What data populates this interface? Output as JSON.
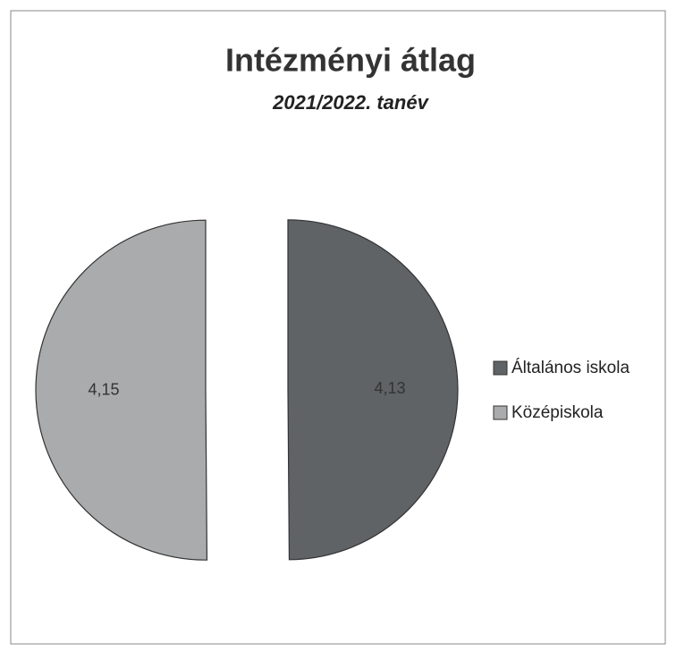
{
  "chart_data": {
    "type": "pie",
    "title": "Intézményi átlag",
    "subtitle": "2021/2022. tanév",
    "categories": [
      "Általános iskola",
      "Középiskola"
    ],
    "values": [
      4.13,
      4.15
    ],
    "value_labels": [
      "4,13",
      "4,15"
    ],
    "colors": [
      "#5f6366",
      "#a9abac"
    ],
    "legend": "right"
  }
}
